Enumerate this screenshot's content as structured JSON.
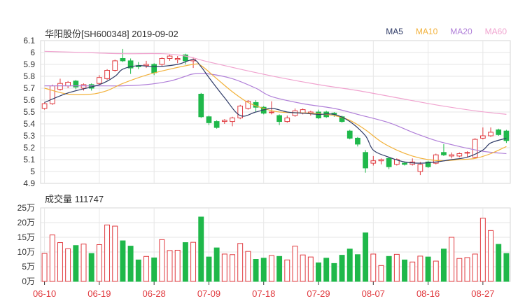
{
  "title": "华阳股份[SH600348] 2019-09-02",
  "volume_label": "成交量 111747",
  "colors": {
    "up": "#e0393e",
    "down": "#1fb84a",
    "ma5": "#2e3a66",
    "ma10": "#f2b13a",
    "ma20": "#b07fd8",
    "ma60": "#f0a3cf",
    "grid": "#e6e6e6"
  },
  "chart_data": [
    {
      "type": "candlestick",
      "title": "华阳股份[SH600348] 2019-09-02",
      "ylim": [
        4.9,
        6.1
      ],
      "yticks": [
        "6.1",
        "6",
        "5.9",
        "5.8",
        "5.7",
        "5.6",
        "5.5",
        "5.4",
        "5.3",
        "5.2",
        "5.1",
        "5",
        "4.9"
      ],
      "xticks": [
        {
          "label": "06-10",
          "index": 0
        },
        {
          "label": "06-19",
          "index": 7
        },
        {
          "label": "06-28",
          "index": 14
        },
        {
          "label": "07-09",
          "index": 21
        },
        {
          "label": "07-18",
          "index": 28
        },
        {
          "label": "07-29",
          "index": 35
        },
        {
          "label": "08-07",
          "index": 42
        },
        {
          "label": "08-16",
          "index": 49
        },
        {
          "label": "08-27",
          "index": 56
        }
      ],
      "legend": [
        "MA5",
        "MA10",
        "MA20",
        "MA60"
      ],
      "candles": [
        {
          "o": 5.53,
          "h": 5.58,
          "l": 5.52,
          "c": 5.57
        },
        {
          "o": 5.57,
          "h": 5.73,
          "l": 5.56,
          "c": 5.72
        },
        {
          "o": 5.69,
          "h": 5.78,
          "l": 5.68,
          "c": 5.74
        },
        {
          "o": 5.72,
          "h": 5.76,
          "l": 5.7,
          "c": 5.75
        },
        {
          "o": 5.76,
          "h": 5.77,
          "l": 5.69,
          "c": 5.71
        },
        {
          "o": 5.7,
          "h": 5.74,
          "l": 5.68,
          "c": 5.73
        },
        {
          "o": 5.73,
          "h": 5.74,
          "l": 5.68,
          "c": 5.7
        },
        {
          "o": 5.74,
          "h": 5.81,
          "l": 5.73,
          "c": 5.79
        },
        {
          "o": 5.78,
          "h": 5.86,
          "l": 5.77,
          "c": 5.85
        },
        {
          "o": 5.85,
          "h": 5.94,
          "l": 5.84,
          "c": 5.93
        },
        {
          "o": 5.95,
          "h": 6.03,
          "l": 5.92,
          "c": 5.93
        },
        {
          "o": 5.93,
          "h": 5.95,
          "l": 5.82,
          "c": 5.87
        },
        {
          "o": 5.89,
          "h": 5.92,
          "l": 5.86,
          "c": 5.88
        },
        {
          "o": 5.89,
          "h": 5.93,
          "l": 5.87,
          "c": 5.9
        },
        {
          "o": 5.9,
          "h": 5.91,
          "l": 5.81,
          "c": 5.83
        },
        {
          "o": 5.9,
          "h": 5.96,
          "l": 5.88,
          "c": 5.95
        },
        {
          "o": 5.95,
          "h": 5.98,
          "l": 5.93,
          "c": 5.97
        },
        {
          "o": 5.94,
          "h": 5.97,
          "l": 5.91,
          "c": 5.95
        },
        {
          "o": 5.98,
          "h": 5.99,
          "l": 5.9,
          "c": 5.93
        },
        {
          "o": 5.93,
          "h": 5.96,
          "l": 5.87,
          "c": 5.94
        },
        {
          "o": 5.65,
          "h": 5.66,
          "l": 5.45,
          "c": 5.46
        },
        {
          "o": 5.46,
          "h": 5.47,
          "l": 5.39,
          "c": 5.41
        },
        {
          "o": 5.42,
          "h": 5.43,
          "l": 5.36,
          "c": 5.37
        },
        {
          "o": 5.42,
          "h": 5.44,
          "l": 5.4,
          "c": 5.43
        },
        {
          "o": 5.42,
          "h": 5.46,
          "l": 5.38,
          "c": 5.45
        },
        {
          "o": 5.45,
          "h": 5.56,
          "l": 5.44,
          "c": 5.55
        },
        {
          "o": 5.53,
          "h": 5.6,
          "l": 5.52,
          "c": 5.59
        },
        {
          "o": 5.58,
          "h": 5.6,
          "l": 5.5,
          "c": 5.54
        },
        {
          "o": 5.54,
          "h": 5.55,
          "l": 5.48,
          "c": 5.49
        },
        {
          "o": 5.5,
          "h": 5.59,
          "l": 5.48,
          "c": 5.5
        },
        {
          "o": 5.47,
          "h": 5.48,
          "l": 5.39,
          "c": 5.42
        },
        {
          "o": 5.42,
          "h": 5.47,
          "l": 5.41,
          "c": 5.45
        },
        {
          "o": 5.47,
          "h": 5.53,
          "l": 5.46,
          "c": 5.51
        },
        {
          "o": 5.49,
          "h": 5.53,
          "l": 5.48,
          "c": 5.52
        },
        {
          "o": 5.49,
          "h": 5.51,
          "l": 5.47,
          "c": 5.5
        },
        {
          "o": 5.5,
          "h": 5.52,
          "l": 5.44,
          "c": 5.45
        },
        {
          "o": 5.5,
          "h": 5.51,
          "l": 5.45,
          "c": 5.46
        },
        {
          "o": 5.49,
          "h": 5.5,
          "l": 5.46,
          "c": 5.48
        },
        {
          "o": 5.46,
          "h": 5.47,
          "l": 5.41,
          "c": 5.42
        },
        {
          "o": 5.34,
          "h": 5.35,
          "l": 5.27,
          "c": 5.28
        },
        {
          "o": 5.28,
          "h": 5.29,
          "l": 5.21,
          "c": 5.23
        },
        {
          "o": 5.16,
          "h": 5.18,
          "l": 4.99,
          "c": 5.03
        },
        {
          "o": 5.07,
          "h": 5.13,
          "l": 5.05,
          "c": 5.09
        },
        {
          "o": 5.09,
          "h": 5.11,
          "l": 5.06,
          "c": 5.1
        },
        {
          "o": 5.11,
          "h": 5.12,
          "l": 5.02,
          "c": 5.04
        },
        {
          "o": 5.06,
          "h": 5.11,
          "l": 5.05,
          "c": 5.1
        },
        {
          "o": 5.07,
          "h": 5.08,
          "l": 5.05,
          "c": 5.06
        },
        {
          "o": 5.06,
          "h": 5.11,
          "l": 5.05,
          "c": 5.08
        },
        {
          "o": 5.0,
          "h": 5.08,
          "l": 4.97,
          "c": 5.06
        },
        {
          "o": 5.08,
          "h": 5.09,
          "l": 5.03,
          "c": 5.04
        },
        {
          "o": 5.07,
          "h": 5.15,
          "l": 5.06,
          "c": 5.14
        },
        {
          "o": 5.16,
          "h": 5.23,
          "l": 5.13,
          "c": 5.14
        },
        {
          "o": 5.13,
          "h": 5.16,
          "l": 5.11,
          "c": 5.14
        },
        {
          "o": 5.13,
          "h": 5.16,
          "l": 5.12,
          "c": 5.15
        },
        {
          "o": 5.16,
          "h": 5.17,
          "l": 5.12,
          "c": 5.16
        },
        {
          "o": 5.12,
          "h": 5.28,
          "l": 5.11,
          "c": 5.27
        },
        {
          "o": 5.28,
          "h": 5.37,
          "l": 5.27,
          "c": 5.3
        },
        {
          "o": 5.3,
          "h": 5.37,
          "l": 5.29,
          "c": 5.33
        },
        {
          "o": 5.35,
          "h": 5.36,
          "l": 5.3,
          "c": 5.31
        },
        {
          "o": 5.34,
          "h": 5.35,
          "l": 5.24,
          "c": 5.26
        }
      ],
      "ma5": [
        [
          0,
          5.58
        ],
        [
          3,
          5.66
        ],
        [
          7,
          5.73
        ],
        [
          9,
          5.8
        ],
        [
          10,
          5.86
        ],
        [
          12,
          5.89
        ],
        [
          14,
          5.88
        ],
        [
          17,
          5.9
        ],
        [
          19,
          5.94
        ],
        [
          20,
          5.88
        ],
        [
          21,
          5.79
        ],
        [
          23,
          5.62
        ],
        [
          25,
          5.47
        ],
        [
          27,
          5.5
        ],
        [
          29,
          5.53
        ],
        [
          31,
          5.5
        ],
        [
          33,
          5.49
        ],
        [
          35,
          5.48
        ],
        [
          37,
          5.48
        ],
        [
          39,
          5.42
        ],
        [
          41,
          5.3
        ],
        [
          42,
          5.18
        ],
        [
          44,
          5.12
        ],
        [
          46,
          5.08
        ],
        [
          48,
          5.07
        ],
        [
          50,
          5.08
        ],
        [
          52,
          5.1
        ],
        [
          54,
          5.12
        ],
        [
          56,
          5.18
        ],
        [
          57,
          5.24
        ],
        [
          59,
          5.28
        ]
      ],
      "ma10": [
        [
          0,
          5.7
        ],
        [
          3,
          5.65
        ],
        [
          6,
          5.65
        ],
        [
          8,
          5.68
        ],
        [
          10,
          5.74
        ],
        [
          13,
          5.81
        ],
        [
          16,
          5.86
        ],
        [
          19,
          5.9
        ],
        [
          20,
          5.89
        ],
        [
          22,
          5.78
        ],
        [
          24,
          5.67
        ],
        [
          26,
          5.58
        ],
        [
          28,
          5.53
        ],
        [
          30,
          5.5
        ],
        [
          34,
          5.49
        ],
        [
          37,
          5.47
        ],
        [
          39,
          5.43
        ],
        [
          41,
          5.35
        ],
        [
          43,
          5.25
        ],
        [
          45,
          5.18
        ],
        [
          47,
          5.13
        ],
        [
          49,
          5.1
        ],
        [
          51,
          5.09
        ],
        [
          53,
          5.1
        ],
        [
          55,
          5.11
        ],
        [
          57,
          5.15
        ],
        [
          59,
          5.21
        ]
      ],
      "ma20": [
        [
          0,
          5.72
        ],
        [
          3,
          5.72
        ],
        [
          7,
          5.72
        ],
        [
          10,
          5.72
        ],
        [
          13,
          5.73
        ],
        [
          16,
          5.76
        ],
        [
          18,
          5.8
        ],
        [
          19,
          5.82
        ],
        [
          21,
          5.82
        ],
        [
          24,
          5.78
        ],
        [
          27,
          5.7
        ],
        [
          29,
          5.63
        ],
        [
          33,
          5.57
        ],
        [
          37,
          5.53
        ],
        [
          40,
          5.48
        ],
        [
          44,
          5.41
        ],
        [
          47,
          5.33
        ],
        [
          50,
          5.26
        ],
        [
          53,
          5.21
        ],
        [
          56,
          5.17
        ],
        [
          59,
          5.15
        ]
      ],
      "ma60": [
        [
          0,
          6.01
        ],
        [
          5,
          6.0
        ],
        [
          10,
          5.99
        ],
        [
          15,
          5.99
        ],
        [
          18,
          5.97
        ],
        [
          21,
          5.92
        ],
        [
          25,
          5.86
        ],
        [
          30,
          5.79
        ],
        [
          35,
          5.73
        ],
        [
          40,
          5.68
        ],
        [
          45,
          5.62
        ],
        [
          50,
          5.56
        ],
        [
          55,
          5.51
        ],
        [
          59,
          5.48
        ]
      ]
    },
    {
      "type": "bar",
      "title": "成交量 111747",
      "ylim": [
        0,
        25
      ],
      "yticks": [
        "25万",
        "20万",
        "15万",
        "10万",
        "5万",
        "0万"
      ],
      "unit": "万",
      "values": [
        9.5,
        15.8,
        13.2,
        11.1,
        12.2,
        12.7,
        9.5,
        12.5,
        19.2,
        18.8,
        13.8,
        12.0,
        7.3,
        8.5,
        8.0,
        14.2,
        10.5,
        10.6,
        13.2,
        13.3,
        21.9,
        8.3,
        11.4,
        9.3,
        9.1,
        12.9,
        10.2,
        7.5,
        7.9,
        8.8,
        8.5,
        7.3,
        12.0,
        9.0,
        8.3,
        6.3,
        7.9,
        6.1,
        8.9,
        11.0,
        9.1,
        16.5,
        9.3,
        5.4,
        8.5,
        9.2,
        7.3,
        6.6,
        8.6,
        8.3,
        6.9,
        11.0,
        15.0,
        7.8,
        8.1,
        9.3,
        21.5,
        17.3,
        12.6,
        9.5
      ]
    }
  ]
}
